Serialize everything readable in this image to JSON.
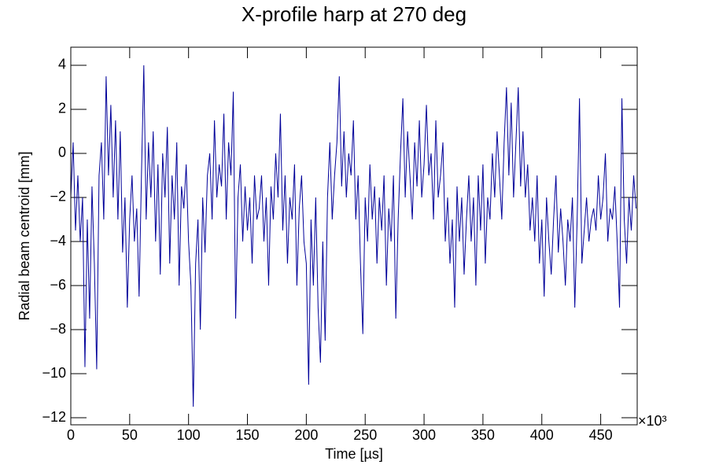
{
  "chart_data": {
    "type": "line",
    "title": "X-profile harp at 270 deg",
    "xlabel": "Time [µs]",
    "ylabel": "Radial beam centroid [mm]",
    "x_multiplier": "×10³",
    "xlim": [
      0,
      481
    ],
    "ylim": [
      -12.32,
      4.82
    ],
    "xticks": [
      0,
      50,
      100,
      150,
      200,
      250,
      300,
      350,
      400,
      450
    ],
    "yticks": [
      {
        "value": -12,
        "label": "−12"
      },
      {
        "value": -10,
        "label": "−10"
      },
      {
        "value": -8,
        "label": "−8"
      },
      {
        "value": -6,
        "label": "−6"
      },
      {
        "value": -4,
        "label": "−4"
      },
      {
        "value": -2,
        "label": "−2"
      },
      0,
      2,
      4
    ],
    "x": [
      0,
      2,
      4,
      6,
      8,
      10,
      12,
      14,
      16,
      18,
      20,
      22,
      24,
      26,
      28,
      30,
      32,
      34,
      36,
      38,
      40,
      42,
      44,
      46,
      48,
      50,
      52,
      54,
      56,
      58,
      60,
      62,
      64,
      66,
      68,
      70,
      72,
      74,
      76,
      78,
      80,
      82,
      84,
      86,
      88,
      90,
      92,
      94,
      96,
      98,
      100,
      102,
      104,
      106,
      108,
      110,
      112,
      114,
      116,
      118,
      120,
      122,
      124,
      126,
      128,
      130,
      132,
      134,
      136,
      138,
      140,
      142,
      144,
      146,
      148,
      150,
      152,
      154,
      156,
      158,
      160,
      162,
      164,
      166,
      168,
      170,
      172,
      174,
      176,
      178,
      180,
      182,
      184,
      186,
      188,
      190,
      192,
      194,
      196,
      198,
      200,
      202,
      204,
      206,
      208,
      210,
      212,
      214,
      216,
      218,
      220,
      222,
      224,
      226,
      228,
      230,
      232,
      234,
      236,
      238,
      240,
      242,
      244,
      246,
      248,
      250,
      252,
      254,
      256,
      258,
      260,
      262,
      264,
      266,
      268,
      270,
      272,
      274,
      276,
      278,
      280,
      282,
      284,
      286,
      288,
      290,
      292,
      294,
      296,
      298,
      300,
      302,
      304,
      306,
      308,
      310,
      312,
      314,
      316,
      318,
      320,
      322,
      324,
      326,
      328,
      330,
      332,
      334,
      336,
      338,
      340,
      342,
      344,
      346,
      348,
      350,
      352,
      354,
      356,
      358,
      360,
      362,
      364,
      366,
      368,
      370,
      372,
      374,
      376,
      378,
      380,
      382,
      384,
      386,
      388,
      390,
      392,
      394,
      396,
      398,
      400,
      402,
      404,
      406,
      408,
      410,
      412,
      414,
      416,
      418,
      420,
      422,
      424,
      426,
      428,
      430,
      432,
      434,
      436,
      438,
      440,
      442,
      444,
      446,
      448,
      450,
      452,
      454,
      456,
      458,
      460,
      462,
      464,
      466,
      468,
      470,
      472,
      474,
      476,
      478,
      480
    ],
    "series": [
      {
        "color": "#000099",
        "values": [
          -2,
          0.5,
          -3.5,
          -1,
          -4,
          -2,
          -9.7,
          -3,
          -7.5,
          -1.5,
          -5,
          -9.8,
          -1,
          0.5,
          -3,
          3.5,
          -1,
          2.2,
          -2,
          1.5,
          -3,
          1,
          -4.5,
          -2,
          -7,
          -3,
          -1,
          -4,
          -2.5,
          -6.5,
          -1,
          4,
          -3,
          0.5,
          -2,
          1,
          -4,
          -0.5,
          -5.5,
          0,
          -2,
          1.2,
          -5,
          -1,
          -3,
          0.5,
          -6,
          -1.5,
          -2.5,
          -0.5,
          -4,
          -6,
          -11.5,
          -5,
          -3,
          -8,
          -2,
          -4.5,
          -1,
          0,
          -3,
          1.5,
          -2,
          -0.5,
          -1.5,
          1.8,
          -3,
          0.5,
          -1,
          2.8,
          -7.5,
          -2,
          -0.5,
          -4,
          -1.5,
          -3.5,
          -2,
          -5,
          -1,
          -3,
          -2.5,
          -1,
          -4,
          -2,
          -6,
          -1.5,
          -3,
          0,
          -2,
          1.8,
          -3.5,
          -1,
          -5,
          -2,
          -3,
          -0.5,
          -6,
          -2.5,
          -1,
          -4,
          -5,
          -10.5,
          -3,
          -6,
          -2,
          -7,
          -9.5,
          -4,
          -8.5,
          -2,
          0.5,
          -3,
          -1,
          0.5,
          3.5,
          -1.5,
          1,
          -2,
          0,
          -1,
          1.5,
          -3,
          -1,
          -5,
          -8.2,
          -2,
          -4,
          -0.5,
          -3,
          -1.5,
          -5,
          -2,
          -3.5,
          -1,
          -6,
          -2.5,
          -4,
          -1,
          -7.5,
          -3,
          0,
          2.5,
          -2,
          1,
          -1,
          -3,
          0.5,
          -1.5,
          1.5,
          -2,
          -0.5,
          2.2,
          -1,
          0,
          -3,
          1.5,
          -2,
          -1,
          0.5,
          -4,
          -2,
          -5,
          -3,
          -7,
          -1.5,
          -4,
          -2,
          -5.5,
          -3,
          -1,
          -4,
          -2,
          -6,
          -1,
          -3.5,
          -0.5,
          -5,
          -2,
          -3,
          0,
          -2,
          1,
          -1,
          -3,
          0.5,
          3,
          -1,
          2.3,
          -2,
          0.5,
          3,
          -1.5,
          1,
          -2,
          -0.5,
          -3.5,
          -2,
          -4,
          -1,
          -5,
          -3,
          -6.5,
          -2,
          -4,
          -5.5,
          -3,
          -1,
          -4.5,
          -2.5,
          -4,
          -6,
          -3,
          -4,
          -2,
          -7,
          -3,
          2.5,
          -5,
          -3.5,
          -2,
          -4,
          -3,
          -2.5,
          -3.5,
          -1,
          -3,
          -2,
          0,
          -4,
          -2.5,
          -3,
          -1.5,
          -4,
          -7,
          2.5,
          -3,
          -5,
          -2,
          -3.5,
          -1,
          -2.5
        ]
      }
    ]
  }
}
